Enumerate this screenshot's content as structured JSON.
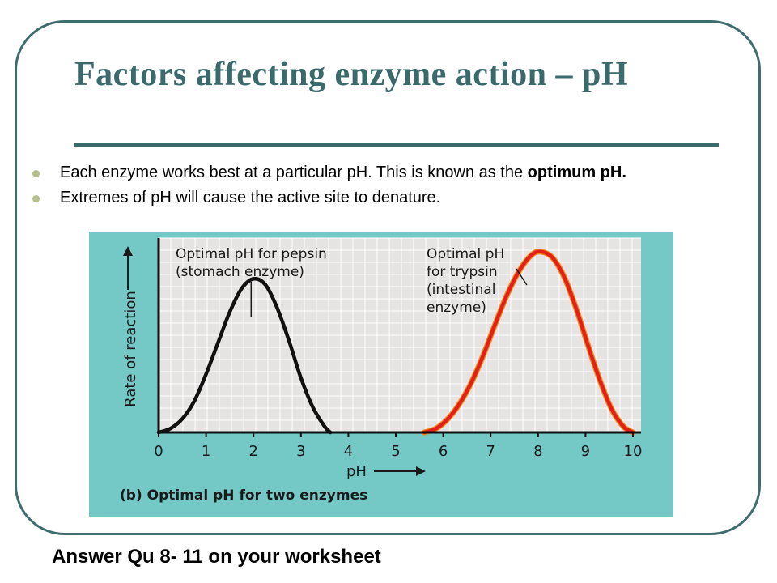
{
  "slide": {
    "title": "Factors affecting enzyme action – pH",
    "bullets": [
      {
        "text": "Each enzyme works best at a particular pH. This is known as the ",
        "bold": "optimum pH."
      },
      {
        "text": "Extremes of pH will cause the active site to denature.",
        "bold": ""
      }
    ],
    "footer": "Answer Qu 8- 11 on your worksheet",
    "colors": {
      "title": "#3a6a6c",
      "frame": "#3f6d6f",
      "figure_bg": "#74c8c6",
      "plot_bg": "#e6e3e3",
      "bullet": "#b5bf8a"
    }
  },
  "chart_data": {
    "type": "line",
    "caption": "(b) Optimal pH for two enzymes",
    "xlabel": "pH",
    "ylabel": "Rate of reaction",
    "xlim": [
      0,
      10
    ],
    "ylim": [
      0,
      1
    ],
    "x_ticks": [
      "0",
      "1",
      "2",
      "3",
      "4",
      "5",
      "6",
      "7",
      "8",
      "9",
      "10"
    ],
    "grid": true,
    "series": [
      {
        "color": "#111111",
        "x": [
          0,
          0.25,
          0.5,
          0.75,
          1,
          1.25,
          1.5,
          1.75,
          2,
          2.25,
          2.5,
          2.75,
          3,
          3.25,
          3.5,
          3.62
        ],
        "y": [
          0,
          0.02,
          0.07,
          0.16,
          0.3,
          0.46,
          0.62,
          0.74,
          0.79,
          0.76,
          0.64,
          0.47,
          0.28,
          0.13,
          0.03,
          0
        ]
      },
      {
        "color": "#e22017",
        "x": [
          5.6,
          5.85,
          6.1,
          6.35,
          6.6,
          6.85,
          7.1,
          7.35,
          7.6,
          7.85,
          8.05,
          8.3,
          8.55,
          8.8,
          9.05,
          9.3,
          9.55,
          9.8,
          10
        ],
        "y": [
          0,
          0.02,
          0.07,
          0.15,
          0.26,
          0.4,
          0.56,
          0.71,
          0.83,
          0.91,
          0.93,
          0.9,
          0.8,
          0.64,
          0.45,
          0.27,
          0.12,
          0.03,
          0
        ]
      }
    ],
    "annotations": [
      {
        "lines": [
          "Optimal pH for pepsin",
          "(stomach enzyme)"
        ],
        "points_to_x": 1.95
      },
      {
        "lines": [
          "Optimal pH",
          "for trypsin",
          "(intestinal",
          "enzyme)"
        ],
        "points_to_x": 7.9
      }
    ]
  }
}
